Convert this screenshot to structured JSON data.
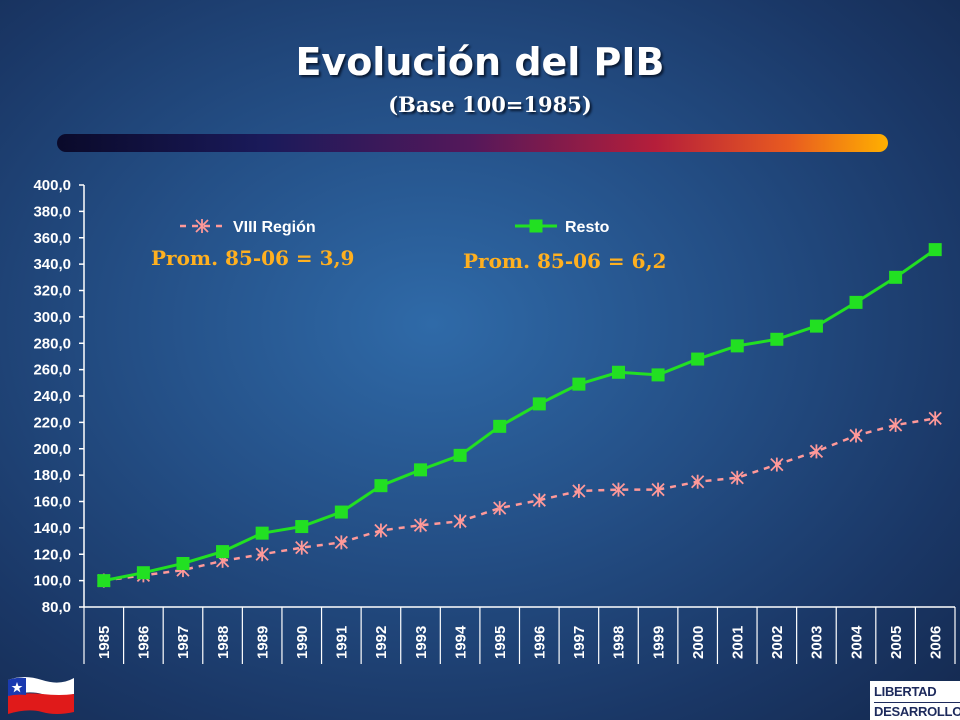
{
  "slide": {
    "title": "Evolución del PIB",
    "subtitle": "(Base 100=1985)"
  },
  "chart_data": {
    "type": "line",
    "categories": [
      "1985",
      "1986",
      "1987",
      "1988",
      "1989",
      "1990",
      "1991",
      "1992",
      "1993",
      "1994",
      "1995",
      "1996",
      "1997",
      "1998",
      "1999",
      "2000",
      "2001",
      "2002",
      "2003",
      "2004",
      "2005",
      "2006"
    ],
    "ylim": [
      80,
      400
    ],
    "yticks": [
      "80,0",
      "100,0",
      "120,0",
      "140,0",
      "160,0",
      "180,0",
      "200,0",
      "220,0",
      "240,0",
      "260,0",
      "280,0",
      "300,0",
      "320,0",
      "340,0",
      "360,0",
      "380,0",
      "400,0"
    ],
    "grid": false,
    "series": [
      {
        "name": "VIII Región",
        "color": "#ff9999",
        "style": "dashed",
        "marker": "star",
        "values": [
          100,
          104,
          108,
          115,
          120,
          125,
          129,
          138,
          142,
          145,
          155,
          161,
          168,
          169,
          169,
          175,
          178,
          188,
          198,
          210,
          218,
          223
        ],
        "annotation": "Prom. 85-06 = 3,9"
      },
      {
        "name": "Resto",
        "color": "#22e022",
        "style": "solid",
        "marker": "square",
        "values": [
          100,
          106,
          113,
          122,
          136,
          141,
          152,
          172,
          184,
          195,
          217,
          234,
          249,
          258,
          256,
          268,
          278,
          283,
          293,
          311,
          330,
          351
        ],
        "annotation": "Prom. 85-06 = 6,2"
      }
    ]
  },
  "logo": {
    "line1": "LIBERTAD",
    "line2": "DESARROLLO"
  },
  "icons": [
    "chile-flag-icon"
  ]
}
